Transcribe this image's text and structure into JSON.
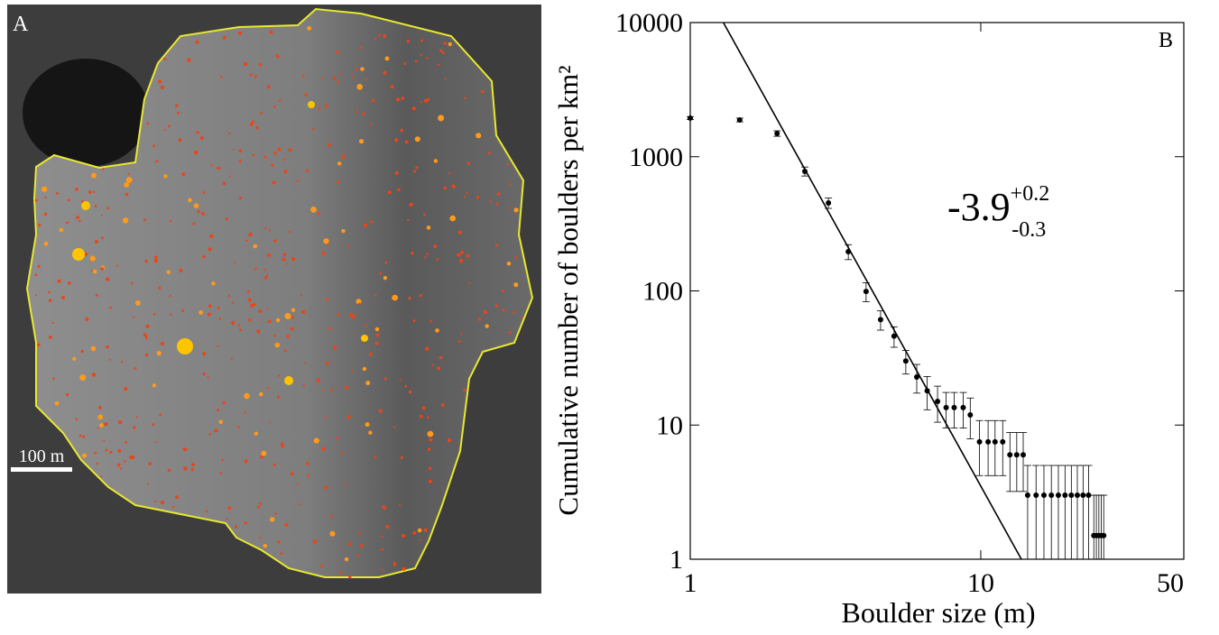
{
  "image_panel": {
    "label": "A",
    "scale_bar": "100 m"
  },
  "chart_data": {
    "type": "scatter",
    "panel_label": "B",
    "xlabel": "Boulder size (m)",
    "ylabel": "Cumulative number of boulders per km²",
    "annotation": {
      "text": "-3.9",
      "sup": "+0.2",
      "sub": "-0.3"
    },
    "log_x": true,
    "log_y": true,
    "xlim": [
      1,
      50
    ],
    "ylim": [
      1,
      10000
    ],
    "xticks": [
      1,
      10,
      50
    ],
    "yticks": [
      1,
      10,
      100,
      1000,
      10000
    ],
    "color": "#000000",
    "x": [
      1,
      1.48,
      1.99,
      2.48,
      2.99,
      3.5,
      4.03,
      4.52,
      5.03,
      5.52,
      6.02,
      6.54,
      7.1,
      7.6,
      8.1,
      8.7,
      9.2,
      9.9,
      10.6,
      11.2,
      11.9,
      12.6,
      13.3,
      14,
      14.5,
      15.5,
      16.5,
      17.5,
      18.5,
      19.5,
      20.5,
      21.5,
      22.5,
      23.5,
      24.5,
      25,
      25.5,
      26,
      26.5
    ],
    "values": [
      1940,
      1880,
      1490,
      778,
      452,
      196,
      99,
      61,
      46,
      30,
      22.8,
      18,
      15,
      13.5,
      13.5,
      13.5,
      11.9,
      7.5,
      7.5,
      7.5,
      7.5,
      6,
      6,
      6,
      3,
      3,
      3,
      3,
      3,
      3,
      3,
      3,
      3,
      3,
      1.5,
      1.5,
      1.5,
      1.5,
      1.5
    ],
    "errors": [
      50,
      60,
      70,
      60,
      40,
      25,
      16,
      10,
      8,
      6,
      5.5,
      5,
      4.5,
      4,
      4,
      4,
      4,
      3.3,
      3.3,
      3.3,
      3.3,
      2.8,
      2.8,
      2.8,
      2,
      2,
      2,
      2,
      2,
      2,
      2,
      2,
      2,
      2,
      1.5,
      1.5,
      1.5,
      1.5,
      1.5
    ],
    "fit_line": {
      "x": [
        1.3,
        13.8
      ],
      "values": [
        10000,
        1
      ],
      "color": "#000000"
    }
  }
}
